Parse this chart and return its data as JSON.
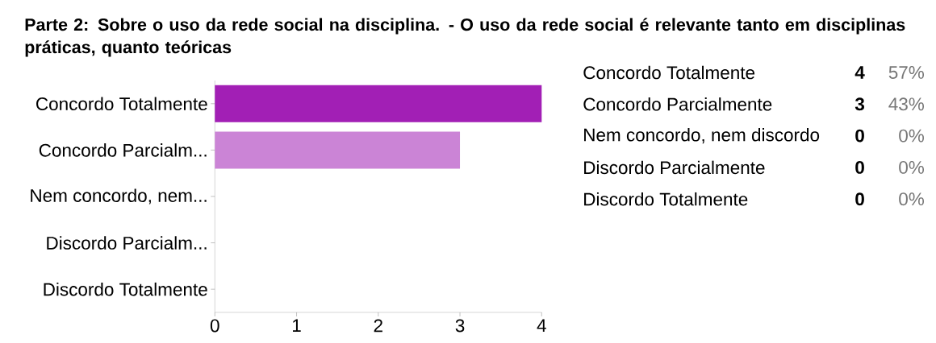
{
  "chart_data": [
    {
      "type": "bar",
      "orientation": "horizontal",
      "title": "Parte 2: Sobre o uso da rede social na disciplina. - O uso da rede social é relevante tanto em disciplinas práticas, quanto teóricas",
      "categories": [
        "Concordo Totalmente",
        "Concordo Parcialm...",
        "Nem concordo, nem...",
        "Discordo Parcialm...",
        "Discordo Totalmente"
      ],
      "values": [
        4,
        3,
        0,
        0,
        0
      ],
      "colors": [
        "#a21fb5",
        "#cb84d6",
        "#d9a6e0",
        "#e6c4eb",
        "#f2e1f5"
      ],
      "xlim": [
        0,
        4
      ],
      "xticks": [
        0,
        1,
        2,
        3,
        4
      ]
    },
    {
      "type": "other",
      "annotations": [
        "Concordo Totalmente",
        "4",
        "57%",
        "Concordo Parcialmente",
        "3",
        "43%",
        "Nem concordo, nem discordo",
        "0",
        "0%",
        "Discordo Parcialmente",
        "0",
        "0%",
        "Discordo Totalmente",
        "0",
        "0%"
      ]
    }
  ]
}
